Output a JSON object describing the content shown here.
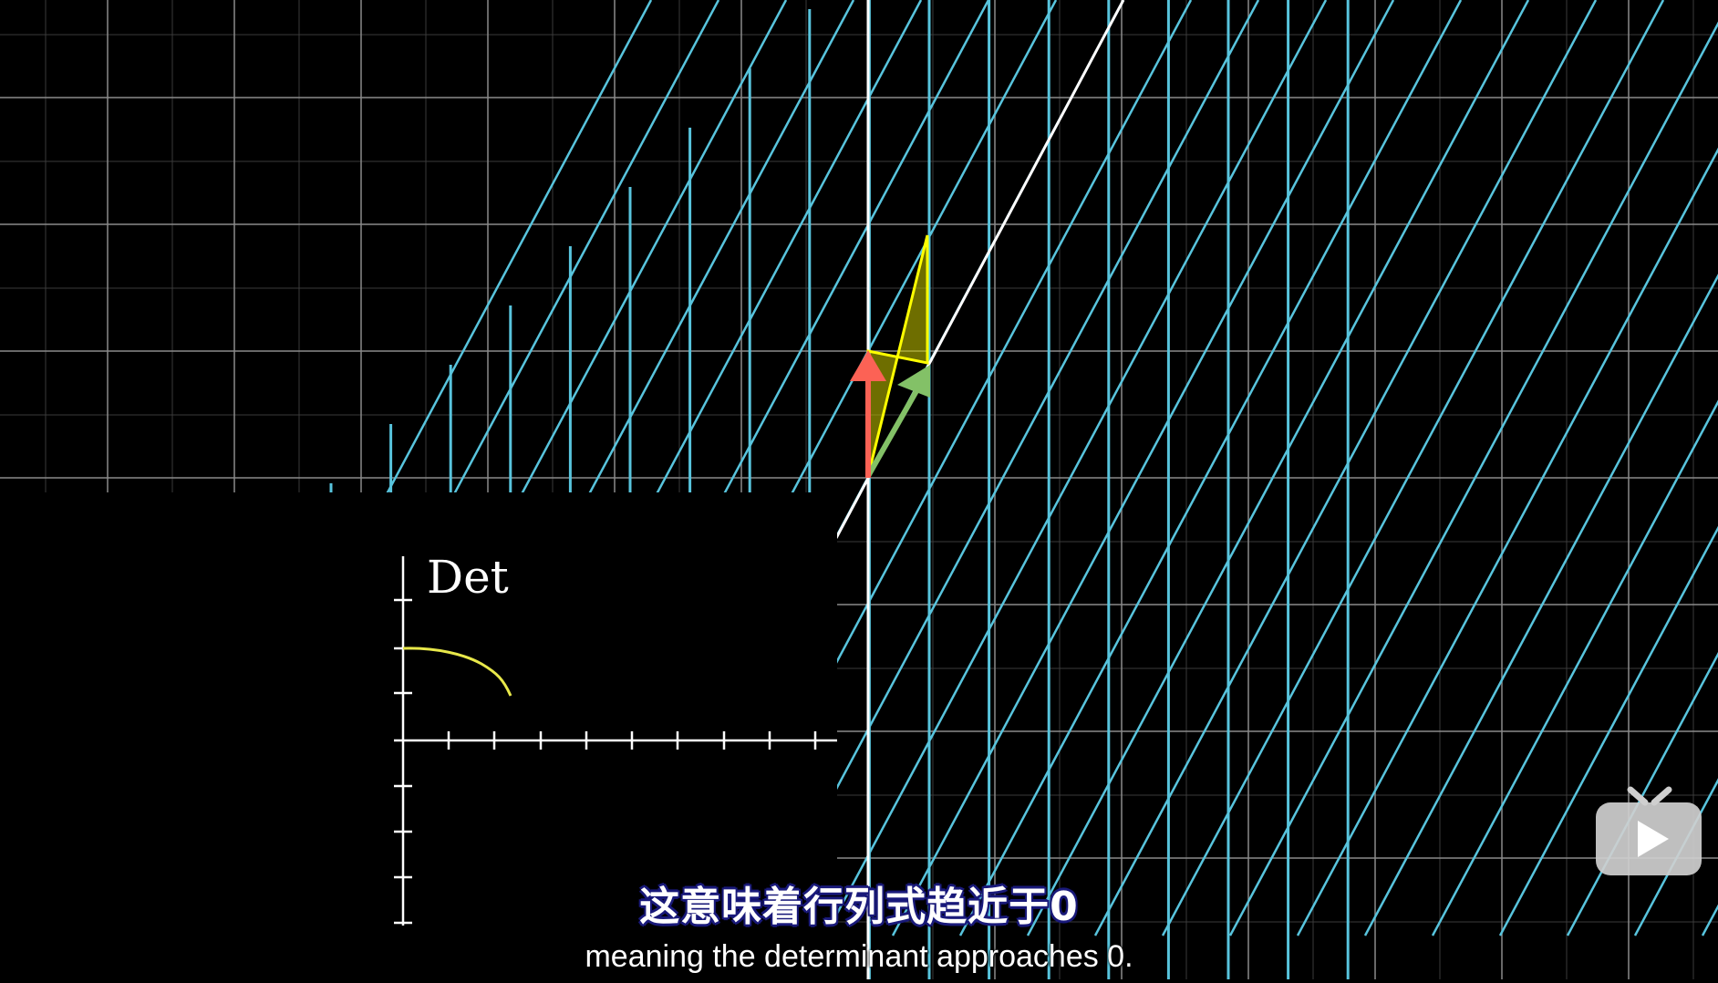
{
  "video": {
    "subtitle_zh": "这意味着行列式趋近于0",
    "subtitle_en": "meaning the determinant approaches 0."
  },
  "inset_graph": {
    "y_label": "Det"
  },
  "colors": {
    "grid": "#8a8a8a",
    "grid_faint": "#3a3a3a",
    "teal": "#58c4dd",
    "yellow": "#ffff00",
    "red_vector": "#fc6255",
    "green_vector": "#83c167",
    "white_line": "#ffffff",
    "curve": "#e8e84a"
  },
  "player": {
    "play_icon": "tv-play-icon"
  }
}
